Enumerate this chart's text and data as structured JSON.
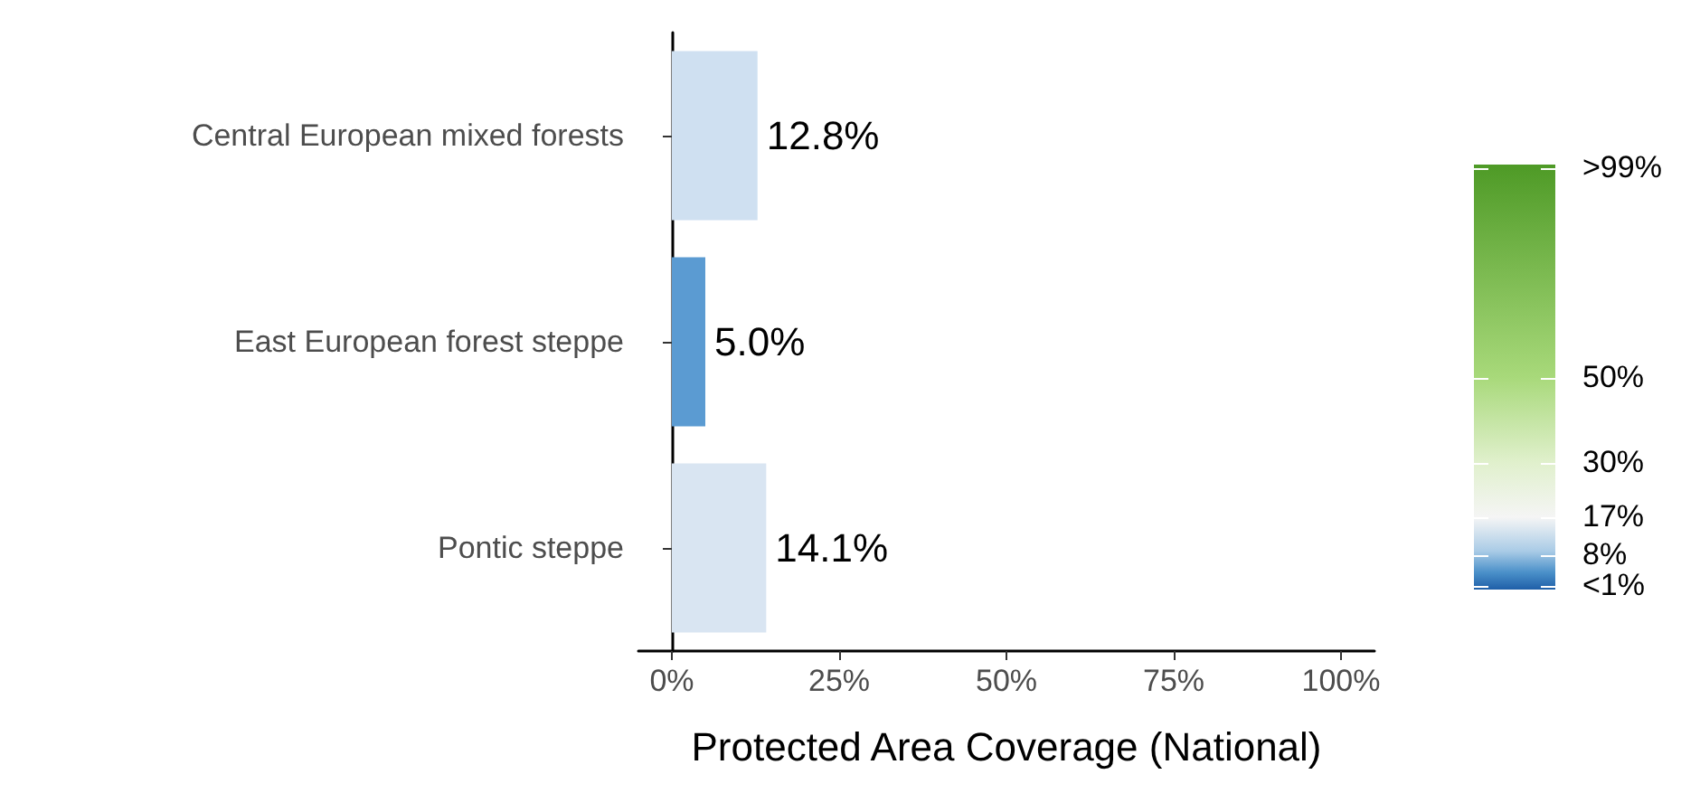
{
  "chart_data": {
    "type": "bar",
    "orientation": "horizontal",
    "xlabel": "Protected Area Coverage (National)",
    "categories": [
      "Central European mixed forests",
      "East European forest steppe",
      "Pontic steppe"
    ],
    "values": [
      12.8,
      5.0,
      14.1
    ],
    "colors": [
      "#cfe0f1",
      "#5b9bd2",
      "#d9e5f2"
    ],
    "value_labels": [
      "12.8%",
      "5.0%",
      "14.1%"
    ],
    "xlim": [
      -5,
      105
    ],
    "xticks": [
      {
        "value": 0,
        "label": "0%"
      },
      {
        "value": 25,
        "label": "25%"
      },
      {
        "value": 50,
        "label": "50%"
      },
      {
        "value": 75,
        "label": "75%"
      },
      {
        "value": 100,
        "label": "100%"
      }
    ],
    "grid": false,
    "clim": [
      0,
      100
    ],
    "cticks": [
      {
        "value": 99,
        "label": ">99%"
      },
      {
        "value": 50,
        "label": "50%"
      },
      {
        "value": 30,
        "label": "30%"
      },
      {
        "value": 17,
        "label": "17%"
      },
      {
        "value": 8,
        "label": "8%"
      },
      {
        "value": 1,
        "label": "<1%"
      }
    ]
  }
}
